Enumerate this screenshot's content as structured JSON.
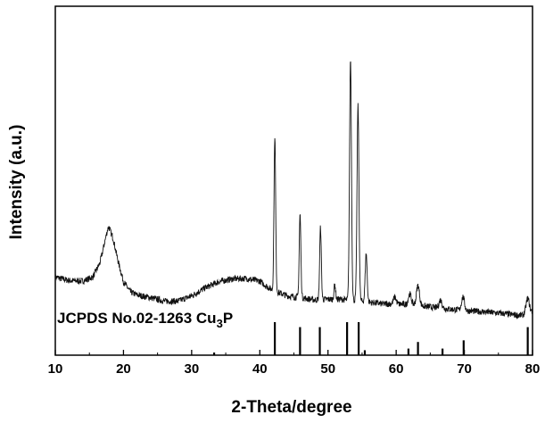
{
  "chart_data": {
    "type": "line",
    "title": "",
    "xlabel": "2-Theta/degree",
    "ylabel": "Intensity (a.u.)",
    "xlim": [
      10,
      80
    ],
    "x_ticks": [
      10,
      20,
      30,
      40,
      50,
      60,
      70,
      80
    ],
    "y_ticks_shown": false,
    "grid": false,
    "series": [
      {
        "profile": [
          [
            10,
            0.165
          ],
          [
            12,
            0.152
          ],
          [
            14,
            0.15
          ],
          [
            15.5,
            0.165
          ],
          [
            16.5,
            0.215
          ],
          [
            17.2,
            0.285
          ],
          [
            17.8,
            0.322
          ],
          [
            18.5,
            0.305
          ],
          [
            19.3,
            0.215
          ],
          [
            20,
            0.148
          ],
          [
            21,
            0.11
          ],
          [
            22,
            0.098
          ],
          [
            24,
            0.088
          ],
          [
            26,
            0.075
          ],
          [
            28,
            0.075
          ],
          [
            30,
            0.095
          ],
          [
            32,
            0.125
          ],
          [
            34,
            0.148
          ],
          [
            36,
            0.158
          ],
          [
            38,
            0.16
          ],
          [
            40,
            0.15
          ],
          [
            41,
            0.13
          ],
          [
            42,
            0.115
          ],
          [
            44,
            0.095
          ],
          [
            46,
            0.088
          ],
          [
            48,
            0.08
          ],
          [
            50,
            0.082
          ],
          [
            52,
            0.082
          ],
          [
            55,
            0.075
          ],
          [
            58,
            0.065
          ],
          [
            60,
            0.065
          ],
          [
            63,
            0.06
          ],
          [
            66,
            0.05
          ],
          [
            70,
            0.04
          ],
          [
            73,
            0.035
          ],
          [
            76,
            0.028
          ],
          [
            78,
            0.022
          ],
          [
            79.5,
            0.025
          ],
          [
            80,
            0.035
          ]
        ],
        "peaks": [
          {
            "x": 17.8,
            "height": 0.03,
            "width": 0.35
          },
          {
            "x": 42.2,
            "height": 0.58,
            "width": 0.12
          },
          {
            "x": 45.9,
            "height": 0.31,
            "width": 0.12
          },
          {
            "x": 48.9,
            "height": 0.27,
            "width": 0.12
          },
          {
            "x": 51.0,
            "height": 0.055,
            "width": 0.12
          },
          {
            "x": 53.3,
            "height": 0.9,
            "width": 0.14
          },
          {
            "x": 54.4,
            "height": 0.73,
            "width": 0.14
          },
          {
            "x": 55.6,
            "height": 0.18,
            "width": 0.14
          },
          {
            "x": 59.8,
            "height": 0.025,
            "width": 0.2
          },
          {
            "x": 62.0,
            "height": 0.04,
            "width": 0.22
          },
          {
            "x": 63.2,
            "height": 0.075,
            "width": 0.22
          },
          {
            "x": 66.5,
            "height": 0.03,
            "width": 0.22
          },
          {
            "x": 69.8,
            "height": 0.05,
            "width": 0.22
          },
          {
            "x": 79.3,
            "height": 0.06,
            "width": 0.25
          }
        ],
        "noise": 0.012
      }
    ],
    "reference": {
      "label": "JCPDS No.02-1263 Cu",
      "label_subscript": "3",
      "label_suffix": "P",
      "lines": [
        {
          "x": 33.3,
          "intensity": 0.08
        },
        {
          "x": 42.2,
          "intensity": 1.0
        },
        {
          "x": 45.9,
          "intensity": 0.85
        },
        {
          "x": 48.8,
          "intensity": 0.85
        },
        {
          "x": 52.8,
          "intensity": 1.0
        },
        {
          "x": 54.5,
          "intensity": 1.0
        },
        {
          "x": 55.4,
          "intensity": 0.15
        },
        {
          "x": 61.8,
          "intensity": 0.2
        },
        {
          "x": 63.2,
          "intensity": 0.4
        },
        {
          "x": 66.8,
          "intensity": 0.2
        },
        {
          "x": 69.9,
          "intensity": 0.45
        },
        {
          "x": 79.3,
          "intensity": 0.85
        }
      ]
    }
  }
}
